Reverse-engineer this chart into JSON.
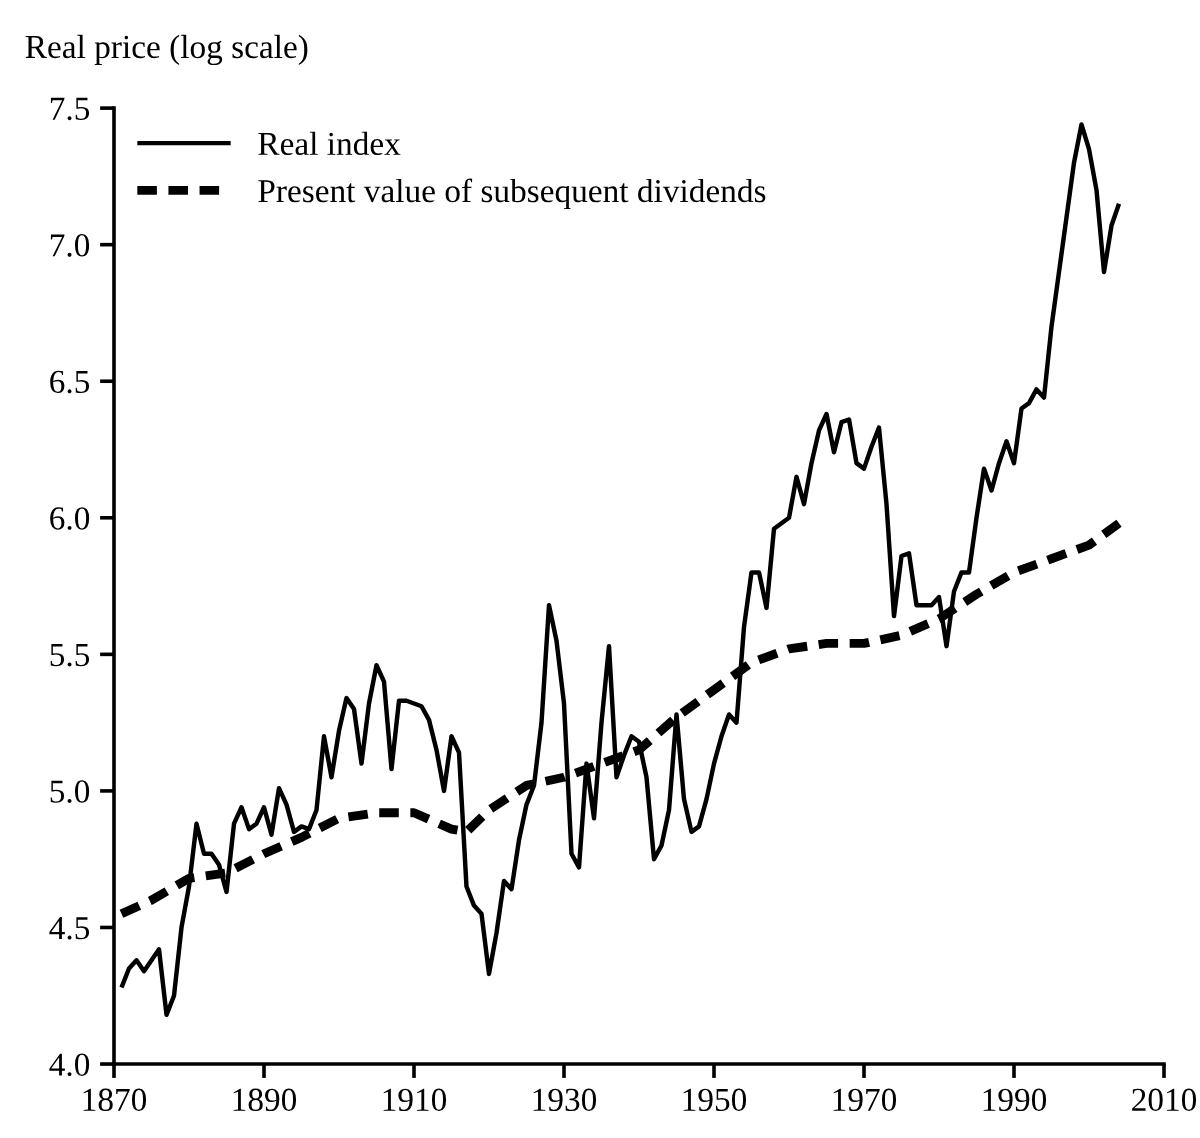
{
  "chart_data": {
    "type": "line",
    "ylabel": "Real price (log scale)",
    "xlim": [
      1870,
      2010
    ],
    "xticks": [
      1870,
      1890,
      1910,
      1930,
      1950,
      1970,
      1990,
      2010
    ],
    "ylim": [
      4.0,
      7.5
    ],
    "yticks": [
      {
        "value": 4.0,
        "label": "4.0"
      },
      {
        "value": 4.5,
        "label": "4.5"
      },
      {
        "value": 5.0,
        "label": "5.0"
      },
      {
        "value": 5.5,
        "label": "5.5"
      },
      {
        "value": 6.0,
        "label": "6.0"
      },
      {
        "value": 6.5,
        "label": "6.5"
      },
      {
        "value": 7.0,
        "label": "7.0"
      },
      {
        "value": 7.5,
        "label": "7.5"
      }
    ],
    "grid": false,
    "legend": "top left",
    "series": [
      {
        "name": "Real index",
        "color": "#000000",
        "line_style": "solid",
        "x": [
          1871,
          1872,
          1873,
          1874,
          1875,
          1876,
          1877,
          1878,
          1879,
          1880,
          1881,
          1882,
          1883,
          1884,
          1885,
          1886,
          1887,
          1888,
          1889,
          1890,
          1891,
          1892,
          1893,
          1894,
          1895,
          1896,
          1897,
          1898,
          1899,
          1900,
          1901,
          1902,
          1903,
          1904,
          1905,
          1906,
          1907,
          1908,
          1909,
          1910,
          1911,
          1912,
          1913,
          1914,
          1915,
          1916,
          1917,
          1918,
          1919,
          1920,
          1921,
          1922,
          1923,
          1924,
          1925,
          1926,
          1927,
          1928,
          1929,
          1930,
          1931,
          1932,
          1933,
          1934,
          1935,
          1936,
          1937,
          1938,
          1939,
          1940,
          1941,
          1942,
          1943,
          1944,
          1945,
          1946,
          1947,
          1948,
          1949,
          1950,
          1951,
          1952,
          1953,
          1954,
          1955,
          1956,
          1957,
          1958,
          1959,
          1960,
          1961,
          1962,
          1963,
          1964,
          1965,
          1966,
          1967,
          1968,
          1969,
          1970,
          1971,
          1972,
          1973,
          1974,
          1975,
          1976,
          1977,
          1978,
          1979,
          1980,
          1981,
          1982,
          1983,
          1984,
          1985,
          1986,
          1987,
          1988,
          1989,
          1990,
          1991,
          1992,
          1993,
          1994,
          1995,
          1996,
          1997,
          1998,
          1999,
          2000,
          2001,
          2002,
          2003,
          2004
        ],
        "values": [
          4.28,
          4.35,
          4.38,
          4.34,
          4.38,
          4.42,
          4.18,
          4.25,
          4.5,
          4.65,
          4.88,
          4.77,
          4.77,
          4.73,
          4.63,
          4.88,
          4.94,
          4.86,
          4.88,
          4.94,
          4.84,
          5.01,
          4.95,
          4.85,
          4.87,
          4.86,
          4.93,
          5.2,
          5.05,
          5.22,
          5.34,
          5.3,
          5.1,
          5.32,
          5.46,
          5.4,
          5.08,
          5.33,
          5.33,
          5.32,
          5.31,
          5.26,
          5.15,
          5.0,
          5.2,
          5.14,
          4.65,
          4.58,
          4.55,
          4.33,
          4.48,
          4.67,
          4.64,
          4.82,
          4.95,
          5.02,
          5.25,
          5.68,
          5.55,
          5.32,
          4.77,
          4.72,
          5.1,
          4.9,
          5.25,
          5.53,
          5.05,
          5.13,
          5.2,
          5.18,
          5.05,
          4.75,
          4.8,
          4.93,
          5.28,
          4.97,
          4.85,
          4.87,
          4.97,
          5.1,
          5.2,
          5.28,
          5.25,
          5.6,
          5.8,
          5.8,
          5.67,
          5.96,
          5.98,
          6.0,
          6.15,
          6.05,
          6.2,
          6.32,
          6.38,
          6.24,
          6.35,
          6.36,
          6.2,
          6.18,
          6.26,
          6.33,
          6.05,
          5.64,
          5.86,
          5.87,
          5.68,
          5.68,
          5.68,
          5.71,
          5.53,
          5.73,
          5.8,
          5.8,
          6.0,
          6.18,
          6.1,
          6.2,
          6.28,
          6.2,
          6.4,
          6.42,
          6.47,
          6.44,
          6.7,
          6.9,
          7.1,
          7.3,
          7.44,
          7.35,
          7.2,
          6.9,
          7.07,
          7.15
        ]
      },
      {
        "name": "Present value of subsequent dividends",
        "color": "#000000",
        "line_style": "dashed",
        "x": [
          1871,
          1875,
          1880,
          1885,
          1890,
          1895,
          1900,
          1905,
          1910,
          1915,
          1917,
          1920,
          1925,
          1930,
          1935,
          1940,
          1945,
          1950,
          1955,
          1960,
          1965,
          1970,
          1975,
          1980,
          1985,
          1990,
          1995,
          2000,
          2004
        ],
        "values": [
          4.55,
          4.6,
          4.68,
          4.7,
          4.77,
          4.83,
          4.9,
          4.92,
          4.92,
          4.86,
          4.85,
          4.93,
          5.02,
          5.05,
          5.1,
          5.15,
          5.27,
          5.37,
          5.47,
          5.52,
          5.54,
          5.54,
          5.57,
          5.63,
          5.72,
          5.8,
          5.85,
          5.9,
          5.98
        ]
      }
    ]
  }
}
